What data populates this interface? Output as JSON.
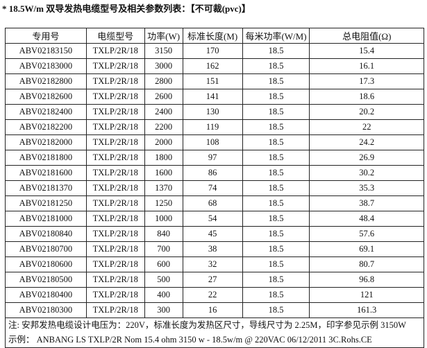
{
  "title": "* 18.5W/m 双导发热电缆型号及相关参数列表：【不可裁(pvc)】",
  "headers": [
    "专用号",
    "电缆型号",
    "功率(W)",
    "标准长度(M)",
    "每米功率(W/M)",
    "总电阻值(Ω)"
  ],
  "rows": [
    [
      "ABV02183150",
      "TXLP/2R/18",
      "3150",
      "170",
      "18.5",
      "15.4"
    ],
    [
      "ABV02183000",
      "TXLP/2R/18",
      "3000",
      "162",
      "18.5",
      "16.1"
    ],
    [
      "ABV02182800",
      "TXLP/2R/18",
      "2800",
      "151",
      "18.5",
      "17.3"
    ],
    [
      "ABV02182600",
      "TXLP/2R/18",
      "2600",
      "141",
      "18.5",
      "18.6"
    ],
    [
      "ABV02182400",
      "TXLP/2R/18",
      "2400",
      "130",
      "18.5",
      "20.2"
    ],
    [
      "ABV02182200",
      "TXLP/2R/18",
      "2200",
      "119",
      "18.5",
      "22"
    ],
    [
      "ABV02182000",
      "TXLP/2R/18",
      "2000",
      "108",
      "18.5",
      "24.2"
    ],
    [
      "ABV02181800",
      "TXLP/2R/18",
      "1800",
      "97",
      "18.5",
      "26.9"
    ],
    [
      "ABV02181600",
      "TXLP/2R/18",
      "1600",
      "86",
      "18.5",
      "30.2"
    ],
    [
      "ABV02181370",
      "TXLP/2R/18",
      "1370",
      "74",
      "18.5",
      "35.3"
    ],
    [
      "ABV02181250",
      "TXLP/2R/18",
      "1250",
      "68",
      "18.5",
      "38.7"
    ],
    [
      "ABV02181000",
      "TXLP/2R/18",
      "1000",
      "54",
      "18.5",
      "48.4"
    ],
    [
      "ABV02180840",
      "TXLP/2R/18",
      "840",
      "45",
      "18.5",
      "57.6"
    ],
    [
      "ABV02180700",
      "TXLP/2R/18",
      "700",
      "38",
      "18.5",
      "69.1"
    ],
    [
      "ABV02180600",
      "TXLP/2R/18",
      "600",
      "32",
      "18.5",
      "80.7"
    ],
    [
      "ABV02180500",
      "TXLP/2R/18",
      "500",
      "27",
      "18.5",
      "96.8"
    ],
    [
      "ABV02180400",
      "TXLP/2R/18",
      "400",
      "22",
      "18.5",
      "121"
    ],
    [
      "ABV02180300",
      "TXLP/2R/18",
      "300",
      "16",
      "18.5",
      "161.3"
    ]
  ],
  "note_line1": "注: 安邦发热电缆设计电压为：220V，标准长度为发热区尺寸，导线尺寸为 2.25M，印字参见示例 3150W",
  "note_line2": "示例：  ANBANG LS TXLP/2R Nom 15.4 ohm 3150 w - 18.5w/m @ 220VAC 06/12/2011 3C.Rohs.CE"
}
